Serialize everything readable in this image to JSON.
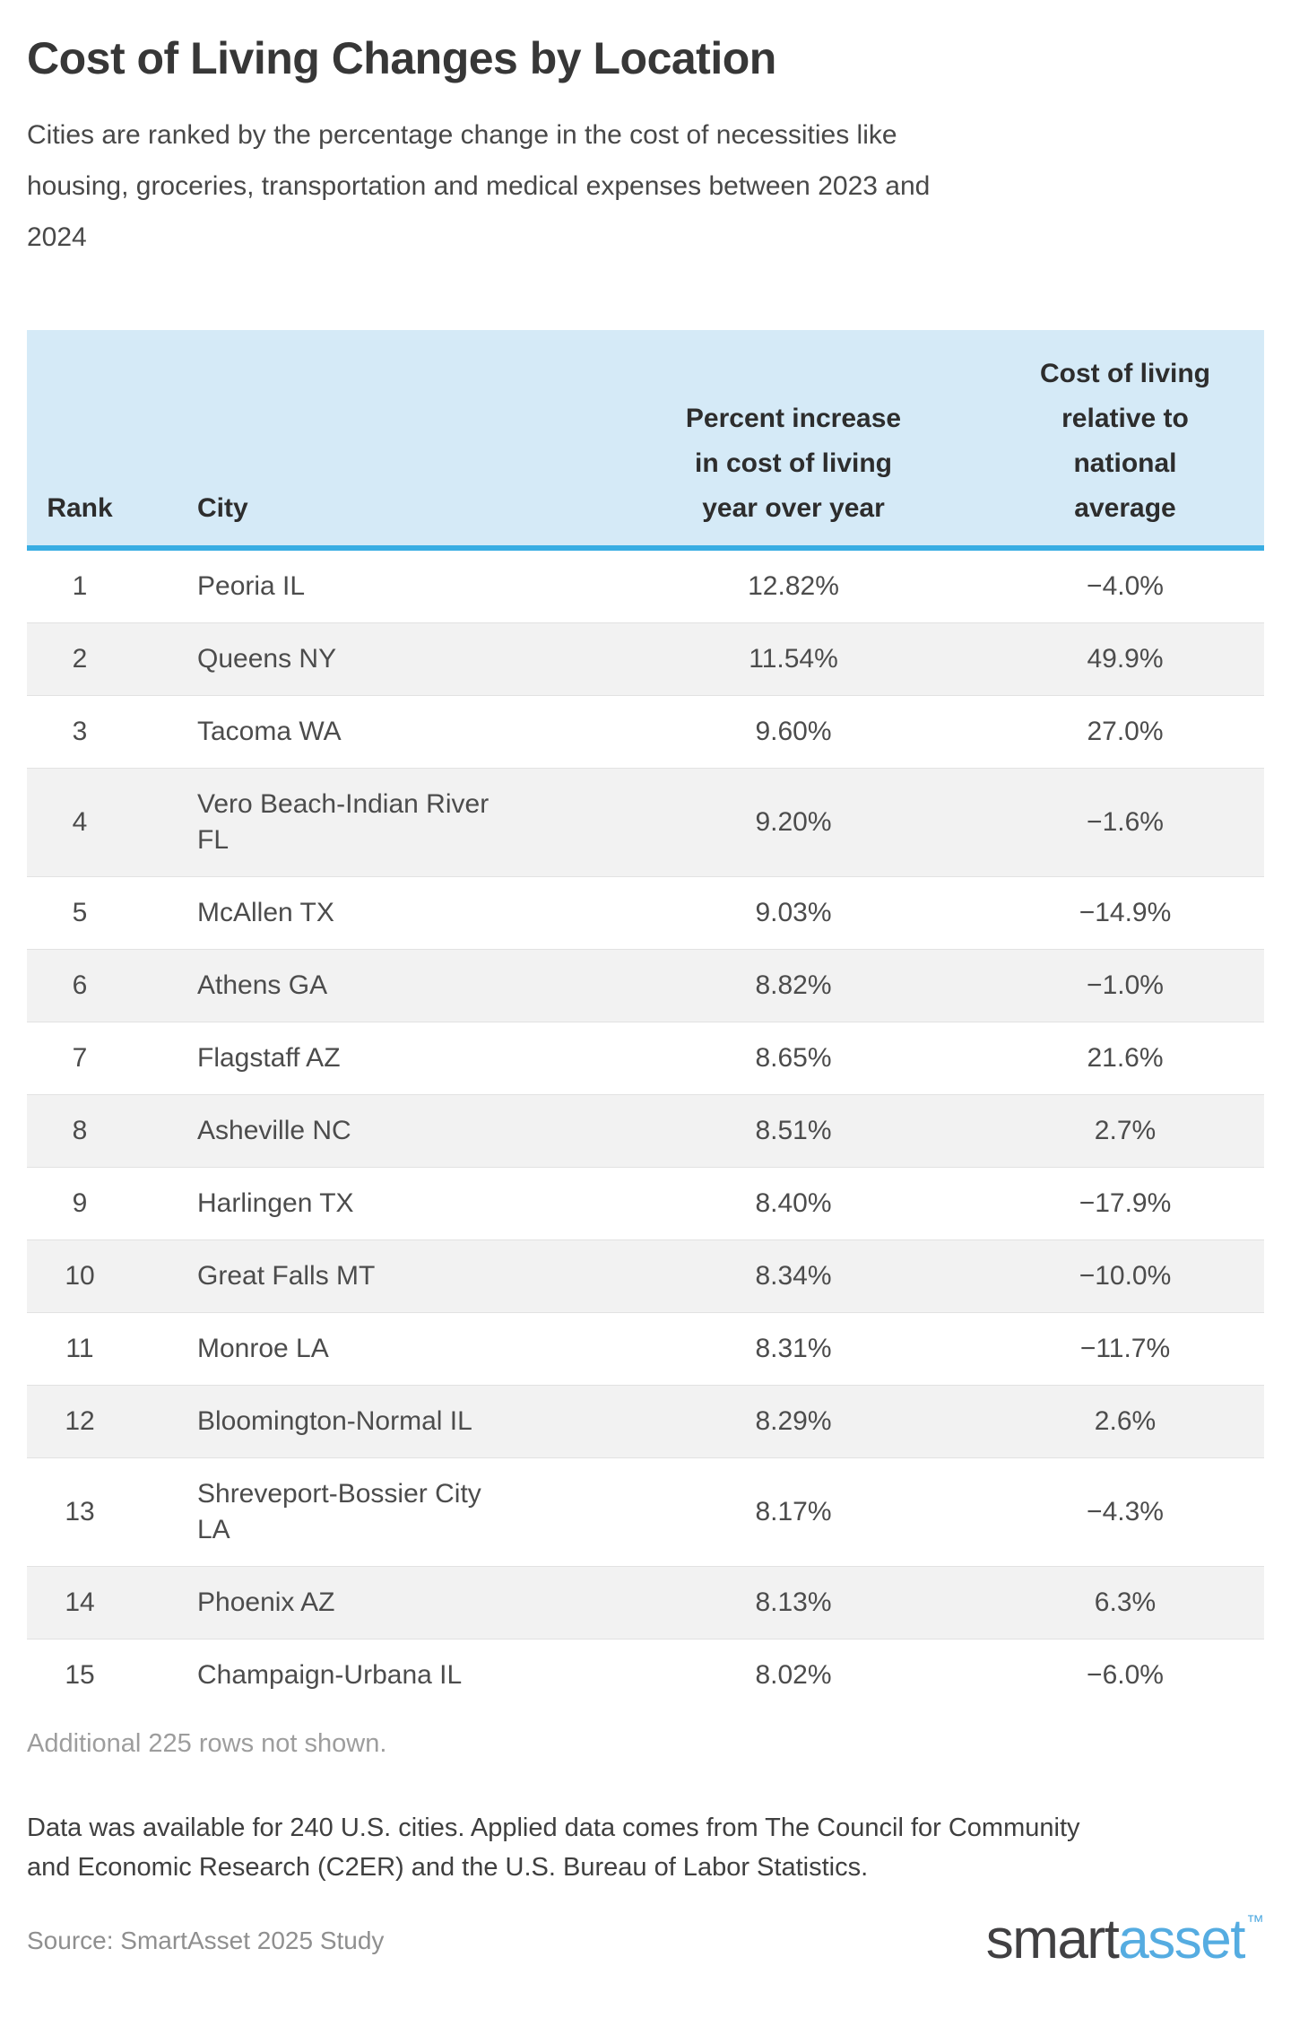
{
  "header": {
    "title": "Cost of Living Changes by Location",
    "subtitle": "Cities are ranked by the percentage change in the cost of necessities like\nhousing, groceries, transportation and medical expenses between 2023 and\n2024"
  },
  "table": {
    "columns": {
      "rank": "Rank",
      "city": "City",
      "percent": "Percent increase\nin cost of living\nyear over year",
      "relative": "Cost of living\nrelative to\nnational\naverage"
    },
    "rows": [
      {
        "rank": "1",
        "city": "Peoria IL",
        "percent": "12.82%",
        "relative": "−4.0%"
      },
      {
        "rank": "2",
        "city": "Queens NY",
        "percent": "11.54%",
        "relative": "49.9%"
      },
      {
        "rank": "3",
        "city": "Tacoma WA",
        "percent": "9.60%",
        "relative": "27.0%"
      },
      {
        "rank": "4",
        "city": "Vero Beach-Indian River\nFL",
        "percent": "9.20%",
        "relative": "−1.6%"
      },
      {
        "rank": "5",
        "city": "McAllen TX",
        "percent": "9.03%",
        "relative": "−14.9%"
      },
      {
        "rank": "6",
        "city": "Athens GA",
        "percent": "8.82%",
        "relative": "−1.0%"
      },
      {
        "rank": "7",
        "city": "Flagstaff AZ",
        "percent": "8.65%",
        "relative": "21.6%"
      },
      {
        "rank": "8",
        "city": "Asheville NC",
        "percent": "8.51%",
        "relative": "2.7%"
      },
      {
        "rank": "9",
        "city": "Harlingen TX",
        "percent": "8.40%",
        "relative": "−17.9%"
      },
      {
        "rank": "10",
        "city": "Great Falls MT",
        "percent": "8.34%",
        "relative": "−10.0%"
      },
      {
        "rank": "11",
        "city": "Monroe LA",
        "percent": "8.31%",
        "relative": "−11.7%"
      },
      {
        "rank": "12",
        "city": "Bloomington-Normal IL",
        "percent": "8.29%",
        "relative": "2.6%"
      },
      {
        "rank": "13",
        "city": "Shreveport-Bossier City\nLA",
        "percent": "8.17%",
        "relative": "−4.3%"
      },
      {
        "rank": "14",
        "city": "Phoenix AZ",
        "percent": "8.13%",
        "relative": "6.3%"
      },
      {
        "rank": "15",
        "city": "Champaign-Urbana IL",
        "percent": "8.02%",
        "relative": "−6.0%"
      }
    ],
    "footnote": "Additional 225 rows not shown."
  },
  "footer": {
    "note": "Data was available for 240 U.S. cities. Applied data comes from The Council for Community\nand Economic Research (C2ER) and the U.S. Bureau of Labor Statistics.",
    "source": "Source: SmartAsset 2025 Study",
    "logo": {
      "part1": "smart",
      "part2": "asset",
      "tm": "™"
    }
  },
  "colors": {
    "header_background": "#d5eaf7",
    "header_border": "#38ade3",
    "row_stripe": "#f2f2f2",
    "brand_blue": "#55ace1",
    "brand_dark": "#414042"
  },
  "chart_data": {
    "type": "table",
    "title": "Cost of Living Changes by Location",
    "subtitle": "Cities are ranked by the percentage change in the cost of necessities like housing, groceries, transportation and medical expenses between 2023 and 2024",
    "columns": [
      "Rank",
      "City",
      "Percent increase in cost of living year over year",
      "Cost of living relative to national average"
    ],
    "rows": [
      [
        1,
        "Peoria IL",
        "12.82%",
        "−4.0%"
      ],
      [
        2,
        "Queens NY",
        "11.54%",
        "49.9%"
      ],
      [
        3,
        "Tacoma WA",
        "9.60%",
        "27.0%"
      ],
      [
        4,
        "Vero Beach-Indian River FL",
        "9.20%",
        "−1.6%"
      ],
      [
        5,
        "McAllen TX",
        "9.03%",
        "−14.9%"
      ],
      [
        6,
        "Athens GA",
        "8.82%",
        "−1.0%"
      ],
      [
        7,
        "Flagstaff AZ",
        "8.65%",
        "21.6%"
      ],
      [
        8,
        "Asheville NC",
        "8.51%",
        "2.7%"
      ],
      [
        9,
        "Harlingen TX",
        "8.40%",
        "−17.9%"
      ],
      [
        10,
        "Great Falls MT",
        "8.34%",
        "−10.0%"
      ],
      [
        11,
        "Monroe LA",
        "8.31%",
        "−11.7%"
      ],
      [
        12,
        "Bloomington-Normal IL",
        "8.29%",
        "2.6%"
      ],
      [
        13,
        "Shreveport-Bossier City LA",
        "8.17%",
        "−4.3%"
      ],
      [
        14,
        "Phoenix AZ",
        "8.13%",
        "6.3%"
      ],
      [
        15,
        "Champaign-Urbana IL",
        "8.02%",
        "−6.0%"
      ]
    ],
    "footnote": "Additional 225 rows not shown.",
    "note": "Data was available for 240 U.S. cities. Applied data comes from The Council for Community and Economic Research (C2ER) and the U.S. Bureau of Labor Statistics.",
    "source": "Source: SmartAsset 2025 Study",
    "legend_position": "none",
    "grid": "row-stripes"
  }
}
